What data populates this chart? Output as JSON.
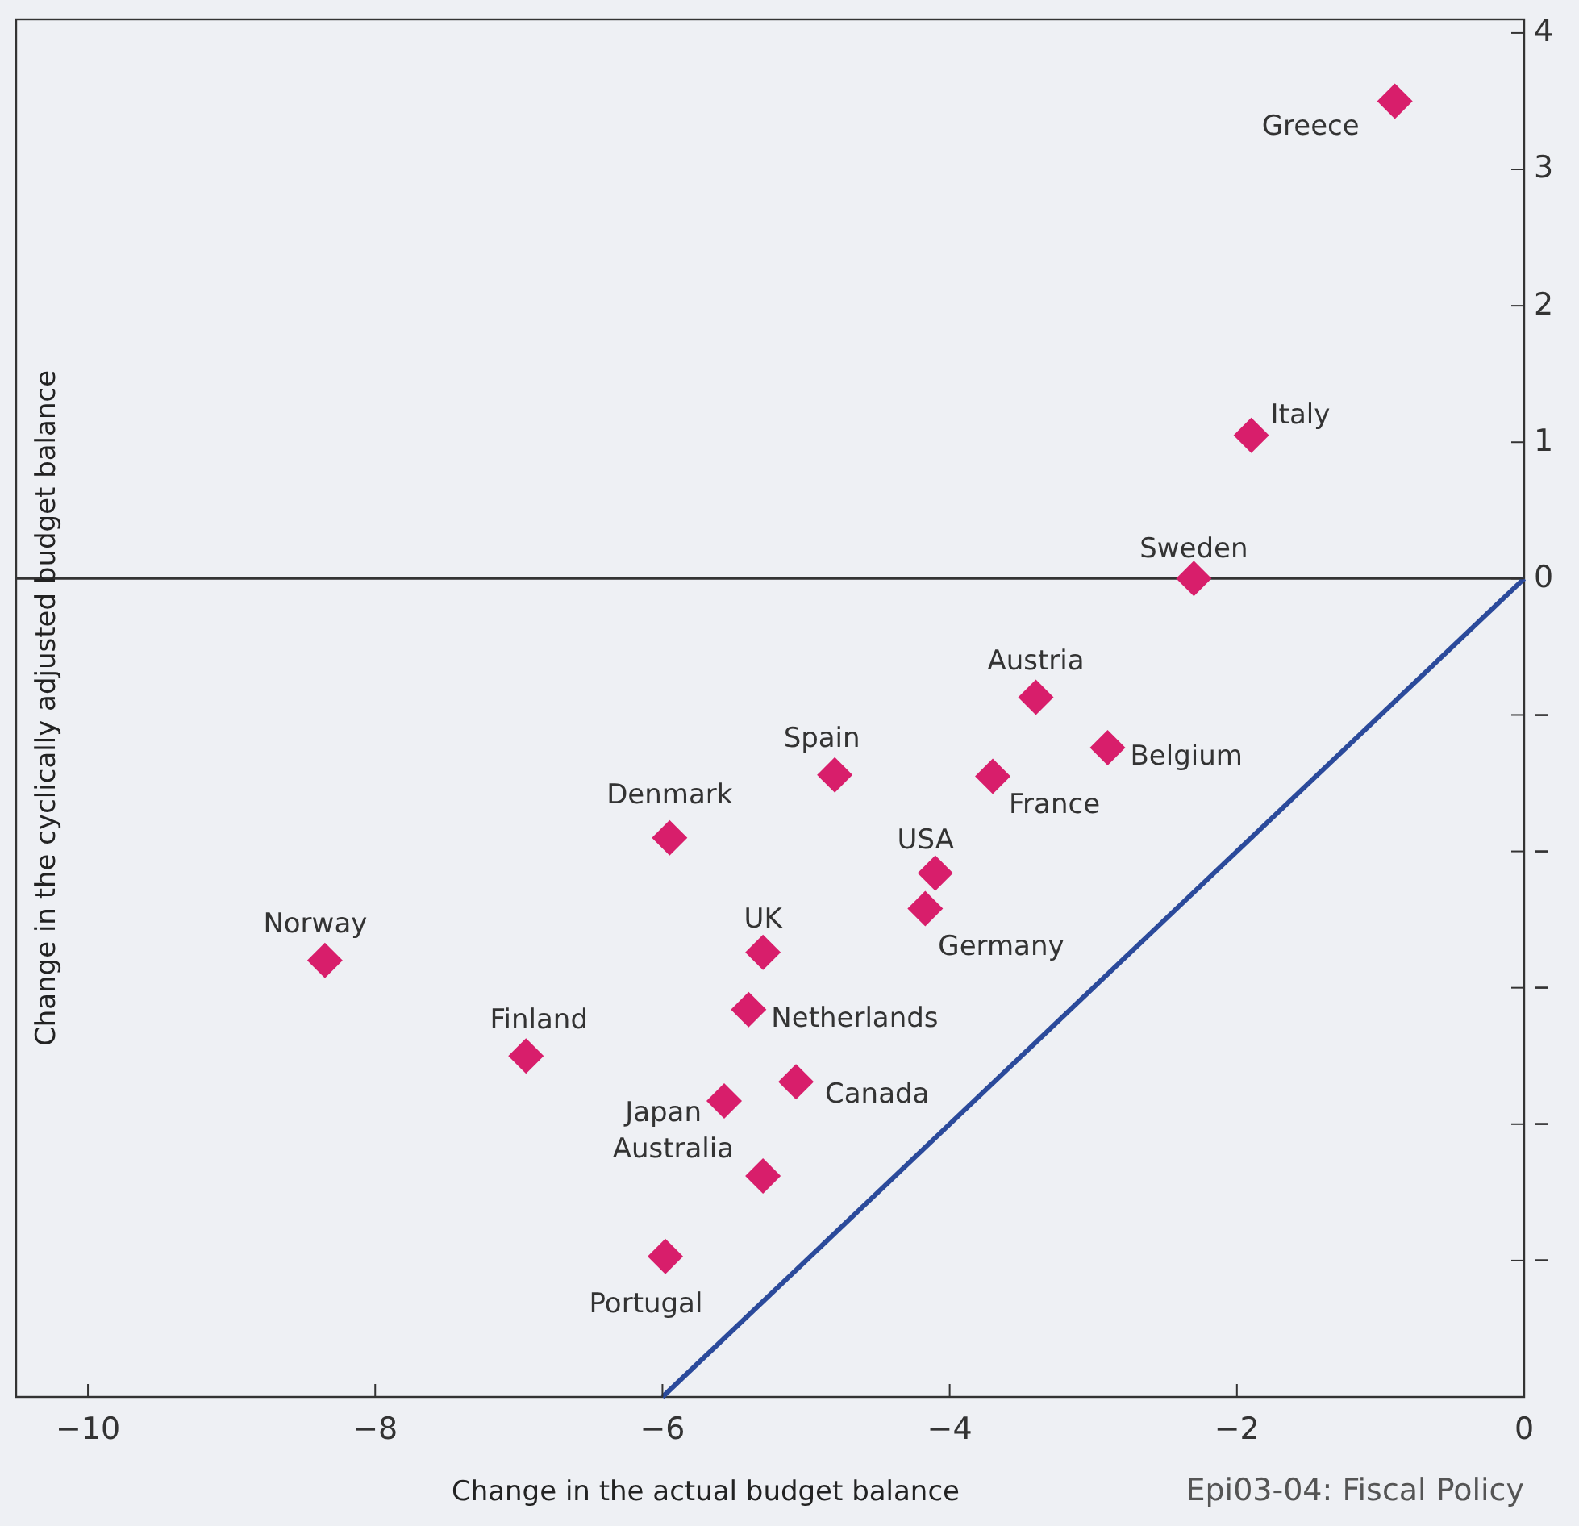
{
  "chart_data": {
    "type": "scatter",
    "xlabel": "Change in the actual budget balance",
    "ylabel": "Change in the cyclically adjusted budget balance",
    "annotations": [
      "Epi03-04: Fiscal Policy"
    ],
    "xlim": [
      -10.5,
      0
    ],
    "xticks": [
      {
        "value": -10,
        "label": "−10"
      },
      {
        "value": -8,
        "label": "−8"
      },
      {
        "value": -6,
        "label": "−6"
      },
      {
        "value": -4,
        "label": "−4"
      },
      {
        "value": -2,
        "label": "−2"
      },
      0
    ],
    "ylim": [
      -6,
      4.1
    ],
    "yticks": [
      {
        "value": -5,
        "label": "–"
      },
      {
        "value": -4,
        "label": "–"
      },
      {
        "value": -3,
        "label": "–"
      },
      {
        "value": -2,
        "label": "–"
      },
      {
        "value": -1,
        "label": "–"
      },
      0,
      1,
      2,
      3,
      4
    ],
    "ref_lines": [
      {
        "axis": "y",
        "value": 0,
        "color": "#333333"
      }
    ],
    "grid": false,
    "legend": false,
    "marker": "diamond",
    "series": [
      {
        "type": "line",
        "color": "#2b4a9b",
        "x": [
          -6,
          0
        ],
        "values": [
          -6,
          0
        ],
        "marker": "none",
        "line_style": "solid"
      },
      {
        "name": "Greece",
        "color": "#d81e6b",
        "x": [
          -0.9
        ],
        "values": [
          3.5
        ]
      },
      {
        "name": "Italy",
        "color": "#d81e6b",
        "x": [
          -1.9
        ],
        "values": [
          1.05
        ]
      },
      {
        "name": "Sweden",
        "color": "#d81e6b",
        "x": [
          -2.3
        ],
        "values": [
          0
        ]
      },
      {
        "name": "Austria",
        "color": "#d81e6b",
        "x": [
          -3.4
        ],
        "values": [
          -0.87
        ]
      },
      {
        "name": "Belgium",
        "color": "#d81e6b",
        "x": [
          -2.9
        ],
        "values": [
          -1.24
        ]
      },
      {
        "name": "Spain",
        "color": "#d81e6b",
        "x": [
          -4.8
        ],
        "values": [
          -1.44
        ]
      },
      {
        "name": "France",
        "color": "#d81e6b",
        "x": [
          -3.7
        ],
        "values": [
          -1.45
        ]
      },
      {
        "name": "Denmark",
        "color": "#d81e6b",
        "x": [
          -5.95
        ],
        "values": [
          -1.9
        ]
      },
      {
        "name": "USA",
        "color": "#d81e6b",
        "x": [
          -4.1
        ],
        "values": [
          -2.16
        ]
      },
      {
        "name": "Germany",
        "color": "#d81e6b",
        "x": [
          -4.17
        ],
        "values": [
          -2.42
        ]
      },
      {
        "name": "Norway",
        "color": "#d81e6b",
        "x": [
          -8.35
        ],
        "values": [
          -2.8
        ]
      },
      {
        "name": "UK",
        "color": "#d81e6b",
        "x": [
          -5.3
        ],
        "values": [
          -2.74
        ]
      },
      {
        "name": "Netherlands",
        "color": "#d81e6b",
        "x": [
          -5.4
        ],
        "values": [
          -3.16
        ]
      },
      {
        "name": "Finland",
        "color": "#d81e6b",
        "x": [
          -6.95
        ],
        "values": [
          -3.5
        ]
      },
      {
        "name": "Canada",
        "color": "#d81e6b",
        "x": [
          -5.07
        ],
        "values": [
          -3.69
        ]
      },
      {
        "name": "Japan",
        "color": "#d81e6b",
        "x": [
          -5.57
        ],
        "values": [
          -3.83
        ]
      },
      {
        "name": "Australia",
        "color": "#d81e6b",
        "x": [
          -5.3
        ],
        "values": [
          -4.38
        ]
      },
      {
        "name": "Portugal",
        "color": "#d81e6b",
        "x": [
          -5.98
        ],
        "values": [
          -4.97
        ]
      }
    ]
  }
}
